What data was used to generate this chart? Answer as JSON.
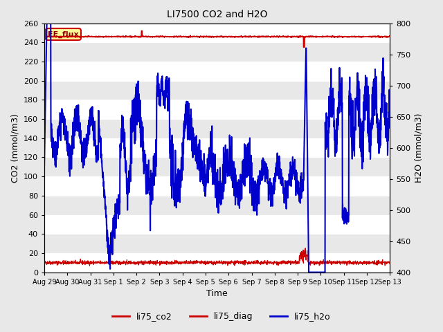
{
  "title": "LI7500 CO2 and H2O",
  "xlabel": "Time",
  "ylabel_left": "CO2 (mmol/m3)",
  "ylabel_right": "H2O (mmol/m3)",
  "ylim_left": [
    0,
    260
  ],
  "ylim_right": [
    400,
    800
  ],
  "annotation_text": "EE_flux",
  "x_tick_labels": [
    "Aug 29",
    "Aug 30",
    "Aug 31",
    "Sep 1",
    "Sep 2",
    "Sep 3",
    "Sep 4",
    "Sep 5",
    "Sep 6",
    "Sep 7",
    "Sep 8",
    "Sep 9",
    "Sep 10",
    "Sep 11",
    "Sep 12",
    "Sep 13"
  ],
  "co2_color": "#CC0000",
  "diag_color": "#CC0000",
  "h2o_color": "#0000CC",
  "legend_labels": [
    "li75_co2",
    "li75_diag",
    "li75_h2o"
  ],
  "background_color": "#E8E8E8",
  "grid_color": "#FFFFFF"
}
